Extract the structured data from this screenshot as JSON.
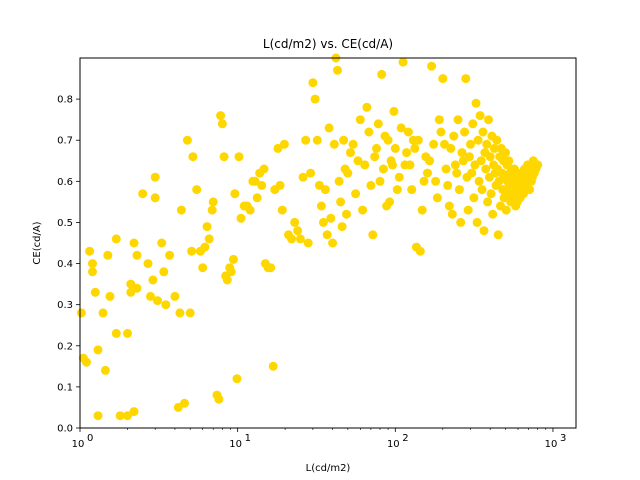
{
  "chart_data": {
    "type": "scatter",
    "title": "L(cd/m2) vs. CE(cd/A)",
    "xlabel": "L(cd/m2)",
    "ylabel": "CE(cd/A)",
    "xscale": "log",
    "xlim": [
      1,
      1400
    ],
    "ylim": [
      0,
      0.9
    ],
    "x_ticks": [
      1,
      10,
      100,
      1000
    ],
    "x_tick_labels": [
      "10",
      "10",
      "10",
      "10"
    ],
    "x_tick_exponents": [
      "0",
      "1",
      "2",
      "3"
    ],
    "y_ticks": [
      0.0,
      0.1,
      0.2,
      0.3,
      0.4,
      0.5,
      0.6,
      0.7,
      0.8
    ],
    "y_tick_labels": [
      "0.0",
      "0.1",
      "0.2",
      "0.3",
      "0.4",
      "0.5",
      "0.6",
      "0.7",
      "0.8"
    ],
    "grid": false,
    "marker_color": "#ffd700",
    "series": [
      {
        "points": [
          [
            1.02,
            0.28
          ],
          [
            1.05,
            0.17
          ],
          [
            1.1,
            0.16
          ],
          [
            1.15,
            0.43
          ],
          [
            1.2,
            0.4
          ],
          [
            1.2,
            0.38
          ],
          [
            1.25,
            0.33
          ],
          [
            1.3,
            0.03
          ],
          [
            1.3,
            0.19
          ],
          [
            1.4,
            0.28
          ],
          [
            1.45,
            0.14
          ],
          [
            1.5,
            0.42
          ],
          [
            1.55,
            0.32
          ],
          [
            1.7,
            0.46
          ],
          [
            1.7,
            0.23
          ],
          [
            1.8,
            0.03
          ],
          [
            2.0,
            0.23
          ],
          [
            2.0,
            0.03
          ],
          [
            2.1,
            0.35
          ],
          [
            2.1,
            0.33
          ],
          [
            2.2,
            0.04
          ],
          [
            2.2,
            0.45
          ],
          [
            2.3,
            0.34
          ],
          [
            2.3,
            0.42
          ],
          [
            2.5,
            0.57
          ],
          [
            2.7,
            0.4
          ],
          [
            2.8,
            0.32
          ],
          [
            2.9,
            0.36
          ],
          [
            3.0,
            0.61
          ],
          [
            3.0,
            0.56
          ],
          [
            3.1,
            0.31
          ],
          [
            3.3,
            0.45
          ],
          [
            3.4,
            0.38
          ],
          [
            3.5,
            0.3
          ],
          [
            3.7,
            0.42
          ],
          [
            4.0,
            0.32
          ],
          [
            4.2,
            0.05
          ],
          [
            4.3,
            0.28
          ],
          [
            4.4,
            0.53
          ],
          [
            4.6,
            0.06
          ],
          [
            4.8,
            0.7
          ],
          [
            5.0,
            0.28
          ],
          [
            5.1,
            0.43
          ],
          [
            5.2,
            0.66
          ],
          [
            5.5,
            0.58
          ],
          [
            5.8,
            0.43
          ],
          [
            6.0,
            0.39
          ],
          [
            6.2,
            0.44
          ],
          [
            6.4,
            0.49
          ],
          [
            6.6,
            0.46
          ],
          [
            6.9,
            0.53
          ],
          [
            7.0,
            0.55
          ],
          [
            7.4,
            0.08
          ],
          [
            7.6,
            0.07
          ],
          [
            7.8,
            0.76
          ],
          [
            8.0,
            0.74
          ],
          [
            8.2,
            0.66
          ],
          [
            8.4,
            0.37
          ],
          [
            8.6,
            0.36
          ],
          [
            8.9,
            0.39
          ],
          [
            9.1,
            0.38
          ],
          [
            9.4,
            0.41
          ],
          [
            9.6,
            0.57
          ],
          [
            9.9,
            0.12
          ],
          [
            10.2,
            0.66
          ],
          [
            10.5,
            0.51
          ],
          [
            11,
            0.54
          ],
          [
            11.5,
            0.54
          ],
          [
            12,
            0.53
          ],
          [
            12.5,
            0.6
          ],
          [
            12.9,
            0.6
          ],
          [
            13.3,
            0.56
          ],
          [
            13.8,
            0.62
          ],
          [
            14.2,
            0.59
          ],
          [
            14.7,
            0.63
          ],
          [
            15,
            0.4
          ],
          [
            15.6,
            0.39
          ],
          [
            16.2,
            0.39
          ],
          [
            16.8,
            0.15
          ],
          [
            17.2,
            0.58
          ],
          [
            18,
            0.68
          ],
          [
            18.6,
            0.59
          ],
          [
            19.2,
            0.53
          ],
          [
            19.8,
            0.69
          ],
          [
            21,
            0.47
          ],
          [
            22,
            0.46
          ],
          [
            23,
            0.5
          ],
          [
            24,
            0.48
          ],
          [
            25,
            0.46
          ],
          [
            26,
            0.61
          ],
          [
            27,
            0.7
          ],
          [
            28,
            0.45
          ],
          [
            29,
            0.62
          ],
          [
            30,
            0.84
          ],
          [
            31,
            0.8
          ],
          [
            32,
            0.7
          ],
          [
            33,
            0.59
          ],
          [
            34,
            0.54
          ],
          [
            35,
            0.5
          ],
          [
            36,
            0.58
          ],
          [
            37,
            0.47
          ],
          [
            38,
            0.73
          ],
          [
            39,
            0.51
          ],
          [
            40,
            0.45
          ],
          [
            41,
            0.69
          ],
          [
            42,
            0.9
          ],
          [
            43,
            0.87
          ],
          [
            44,
            0.6
          ],
          [
            45,
            0.55
          ],
          [
            46,
            0.49
          ],
          [
            47,
            0.7
          ],
          [
            48,
            0.63
          ],
          [
            49,
            0.52
          ],
          [
            50,
            0.62
          ],
          [
            52,
            0.67
          ],
          [
            54,
            0.69
          ],
          [
            56,
            0.57
          ],
          [
            58,
            0.65
          ],
          [
            60,
            0.75
          ],
          [
            62,
            0.53
          ],
          [
            64,
            0.64
          ],
          [
            66,
            0.78
          ],
          [
            68,
            0.72
          ],
          [
            70,
            0.59
          ],
          [
            72,
            0.47
          ],
          [
            74,
            0.66
          ],
          [
            76,
            0.68
          ],
          [
            78,
            0.74
          ],
          [
            80,
            0.6
          ],
          [
            82,
            0.86
          ],
          [
            84,
            0.63
          ],
          [
            86,
            0.71
          ],
          [
            88,
            0.54
          ],
          [
            90,
            0.7
          ],
          [
            92,
            0.55
          ],
          [
            94,
            0.65
          ],
          [
            96,
            0.64
          ],
          [
            98,
            0.77
          ],
          [
            100,
            0.68
          ],
          [
            103,
            0.58
          ],
          [
            106,
            0.61
          ],
          [
            109,
            0.73
          ],
          [
            112,
            0.89
          ],
          [
            115,
            0.64
          ],
          [
            118,
            0.67
          ],
          [
            121,
            0.72
          ],
          [
            124,
            0.64
          ],
          [
            127,
            0.58
          ],
          [
            130,
            0.7
          ],
          [
            133,
            0.68
          ],
          [
            136,
            0.44
          ],
          [
            140,
            0.7
          ],
          [
            144,
            0.43
          ],
          [
            148,
            0.53
          ],
          [
            152,
            0.6
          ],
          [
            156,
            0.66
          ],
          [
            160,
            0.62
          ],
          [
            165,
            0.65
          ],
          [
            170,
            0.88
          ],
          [
            175,
            0.69
          ],
          [
            180,
            0.6
          ],
          [
            185,
            0.56
          ],
          [
            190,
            0.75
          ],
          [
            195,
            0.72
          ],
          [
            200,
            0.85
          ],
          [
            205,
            0.69
          ],
          [
            210,
            0.63
          ],
          [
            215,
            0.59
          ],
          [
            220,
            0.54
          ],
          [
            225,
            0.68
          ],
          [
            230,
            0.52
          ],
          [
            235,
            0.71
          ],
          [
            240,
            0.64
          ],
          [
            245,
            0.62
          ],
          [
            250,
            0.75
          ],
          [
            255,
            0.58
          ],
          [
            260,
            0.5
          ],
          [
            265,
            0.67
          ],
          [
            270,
            0.65
          ],
          [
            275,
            0.72
          ],
          [
            280,
            0.85
          ],
          [
            285,
            0.61
          ],
          [
            290,
            0.53
          ],
          [
            295,
            0.66
          ],
          [
            300,
            0.69
          ],
          [
            305,
            0.62
          ],
          [
            310,
            0.74
          ],
          [
            315,
            0.56
          ],
          [
            320,
            0.64
          ],
          [
            325,
            0.79
          ],
          [
            330,
            0.5
          ],
          [
            335,
            0.7
          ],
          [
            340,
            0.6
          ],
          [
            345,
            0.76
          ],
          [
            350,
            0.65
          ],
          [
            355,
            0.58
          ],
          [
            360,
            0.72
          ],
          [
            365,
            0.48
          ],
          [
            370,
            0.67
          ],
          [
            375,
            0.63
          ],
          [
            380,
            0.69
          ],
          [
            385,
            0.55
          ],
          [
            390,
            0.75
          ],
          [
            395,
            0.61
          ],
          [
            400,
            0.66
          ],
          [
            405,
            0.57
          ],
          [
            410,
            0.71
          ],
          [
            415,
            0.52
          ],
          [
            420,
            0.64
          ],
          [
            425,
            0.68
          ],
          [
            430,
            0.62
          ],
          [
            435,
            0.59
          ],
          [
            440,
            0.7
          ],
          [
            445,
            0.63
          ],
          [
            450,
            0.47
          ],
          [
            455,
            0.6
          ],
          [
            460,
            0.66
          ],
          [
            465,
            0.54
          ],
          [
            470,
            0.68
          ],
          [
            475,
            0.62
          ],
          [
            480,
            0.58
          ],
          [
            485,
            0.65
          ],
          [
            490,
            0.56
          ],
          [
            495,
            0.61
          ],
          [
            500,
            0.67
          ],
          [
            505,
            0.53
          ],
          [
            510,
            0.64
          ],
          [
            515,
            0.6
          ],
          [
            520,
            0.57
          ],
          [
            525,
            0.65
          ],
          [
            530,
            0.59
          ],
          [
            535,
            0.62
          ],
          [
            540,
            0.55
          ],
          [
            545,
            0.63
          ],
          [
            550,
            0.58
          ],
          [
            555,
            0.61
          ],
          [
            560,
            0.56
          ],
          [
            565,
            0.6
          ],
          [
            570,
            0.63
          ],
          [
            575,
            0.57
          ],
          [
            580,
            0.54
          ],
          [
            585,
            0.62
          ],
          [
            590,
            0.59
          ],
          [
            595,
            0.55
          ],
          [
            600,
            0.61
          ],
          [
            610,
            0.58
          ],
          [
            620,
            0.56
          ],
          [
            630,
            0.62
          ],
          [
            640,
            0.6
          ],
          [
            650,
            0.57
          ],
          [
            660,
            0.63
          ],
          [
            670,
            0.59
          ],
          [
            680,
            0.61
          ],
          [
            690,
            0.64
          ],
          [
            700,
            0.62
          ],
          [
            710,
            0.58
          ],
          [
            720,
            0.63
          ],
          [
            730,
            0.6
          ],
          [
            740,
            0.61
          ],
          [
            750,
            0.65
          ],
          [
            760,
            0.62
          ],
          [
            770,
            0.64
          ],
          [
            780,
            0.63
          ],
          [
            790,
            0.64
          ],
          [
            800,
            0.64
          ]
        ]
      }
    ]
  }
}
